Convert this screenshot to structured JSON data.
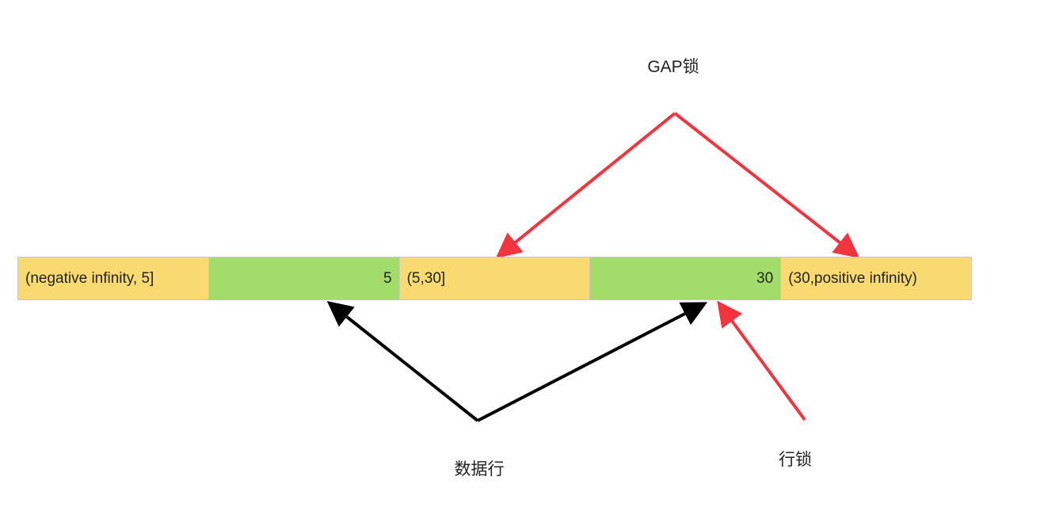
{
  "labels": {
    "gap_lock": "GAP锁",
    "data_row": "数据行",
    "row_lock": "行锁"
  },
  "cells": [
    {
      "text": "(negative infinity, 5]",
      "kind": "gap"
    },
    {
      "text": "5",
      "kind": "row"
    },
    {
      "text": "(5,30]",
      "kind": "gap"
    },
    {
      "text": "30",
      "kind": "row"
    },
    {
      "text": "(30,positive infinity)",
      "kind": "gap"
    }
  ],
  "colors": {
    "gap": "#f9da70",
    "row": "#a1dd68",
    "red_arrow": "#f2343f",
    "black_arrow": "#000000"
  }
}
